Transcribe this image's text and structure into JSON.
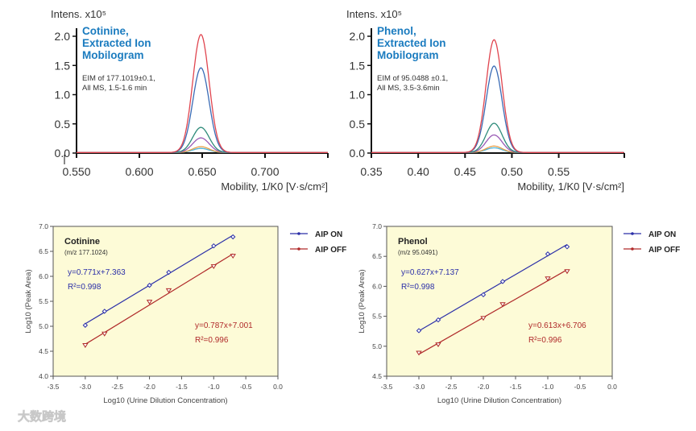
{
  "chart_data": [
    {
      "type": "line",
      "title": "Cotinine, Extracted Ion Mobilogram",
      "title_lines": [
        "Cotinine,",
        "Extracted Ion",
        "Mobilogram"
      ],
      "note_lines": [
        "EIM of 177.1019±0.1,",
        "All MS, 1.5-1.6 min"
      ],
      "ylabel": "Intens. x10⁵",
      "xlabel": "Mobility, 1/K0 [V·s/cm²]",
      "xlim": [
        0.55,
        0.75
      ],
      "ylim": [
        0,
        2.0
      ],
      "xticks": [
        "0.550",
        "0.600",
        "0.650",
        "0.700"
      ],
      "yticks": [
        "0.0",
        "0.5",
        "1.0",
        "1.5",
        "2.0"
      ],
      "peak_center": 0.649,
      "peak_sigma": 0.0065,
      "series": [
        {
          "color": "#e0454f",
          "peak": 2.02
        },
        {
          "color": "#3a6bb5",
          "peak": 1.45
        },
        {
          "color": "#2e8b7a",
          "peak": 0.43
        },
        {
          "color": "#9a5bb5",
          "peak": 0.25
        },
        {
          "color": "#e8a04a",
          "peak": 0.1
        },
        {
          "color": "#4fb3d9",
          "peak": 0.07
        }
      ]
    },
    {
      "type": "line",
      "title": "Phenol, Extracted Ion Mobilogram",
      "title_lines": [
        "Phenol,",
        "Extracted Ion",
        "Mobilogram"
      ],
      "note_lines": [
        "EIM of 95.0488 ±0.1,",
        "All MS, 3.5-3.6min"
      ],
      "ylabel": "Intens. x10⁵",
      "xlabel": "Mobility, 1/K0 [V·s/cm²]",
      "xlim": [
        0.35,
        0.62
      ],
      "ylim": [
        0,
        2.0
      ],
      "xticks": [
        "0.35",
        "0.40",
        "0.45",
        "0.50",
        "0.55"
      ],
      "yticks": [
        "0.0",
        "0.5",
        "1.0",
        "1.5",
        "2.0"
      ],
      "peak_center": 0.481,
      "peak_sigma": 0.0085,
      "series": [
        {
          "color": "#e0454f",
          "peak": 1.93
        },
        {
          "color": "#3a6bb5",
          "peak": 1.48
        },
        {
          "color": "#2e8b7a",
          "peak": 0.5
        },
        {
          "color": "#9a5bb5",
          "peak": 0.3
        },
        {
          "color": "#e8a04a",
          "peak": 0.11
        },
        {
          "color": "#4fb3d9",
          "peak": 0.08
        }
      ]
    },
    {
      "type": "scatter",
      "title": "Cotinine",
      "subtitle": "(m/z 177.1024)",
      "xlabel": "Log10 (Urine Dilution Concentration)",
      "ylabel": "Log10 (Peak Area)",
      "xlim": [
        -3.5,
        0.0
      ],
      "ylim": [
        4.0,
        7.0
      ],
      "xticks": [
        "-3.5",
        "-3.0",
        "-2.5",
        "-2.0",
        "-1.5",
        "-1.0",
        "-0.5",
        "0.0"
      ],
      "yticks": [
        "4.0",
        "4.5",
        "5.0",
        "5.5",
        "6.0",
        "6.5",
        "7.0"
      ],
      "x": [
        -3.0,
        -2.7,
        -2.0,
        -1.7,
        -1.0,
        -0.7
      ],
      "series": [
        {
          "name": "AIP ON",
          "color": "#2b2fa8",
          "marker": "diamond",
          "values": [
            5.02,
            5.3,
            5.82,
            6.08,
            6.61,
            6.79
          ],
          "slope": 0.771,
          "intercept": 7.363,
          "equation": "y=0.771x+7.363",
          "r2": "R²=0.998"
        },
        {
          "name": "AIP OFF",
          "color": "#b02a2a",
          "marker": "triangle-down",
          "values": [
            4.62,
            4.85,
            5.49,
            5.72,
            6.2,
            6.41
          ],
          "slope": 0.787,
          "intercept": 7.001,
          "equation": "y=0.787x+7.001",
          "r2": "R²=0.996"
        }
      ],
      "legend": "right"
    },
    {
      "type": "scatter",
      "title": "Phenol",
      "subtitle": "(m/z 95.0491)",
      "xlabel": "Log10 (Urine Dilution Concentration)",
      "ylabel": "Log10 (Peak Area)",
      "xlim": [
        -3.5,
        0.0
      ],
      "ylim": [
        4.5,
        7.0
      ],
      "xticks": [
        "-3.5",
        "-3.0",
        "-2.5",
        "-2.0",
        "-1.5",
        "-1.0",
        "-0.5",
        "0.0"
      ],
      "yticks": [
        "4.5",
        "5.0",
        "5.5",
        "6.0",
        "6.5",
        "7.0"
      ],
      "x": [
        -3.0,
        -2.7,
        -2.0,
        -1.7,
        -1.0,
        -0.7
      ],
      "series": [
        {
          "name": "AIP ON",
          "color": "#2b2fa8",
          "marker": "diamond",
          "values": [
            5.26,
            5.44,
            5.86,
            6.08,
            6.54,
            6.66
          ],
          "slope": 0.627,
          "intercept": 7.137,
          "equation": "y=0.627x+7.137",
          "r2": "R²=0.998"
        },
        {
          "name": "AIP OFF",
          "color": "#b02a2a",
          "marker": "triangle-down",
          "values": [
            4.89,
            5.03,
            5.47,
            5.7,
            6.13,
            6.25
          ],
          "slope": 0.613,
          "intercept": 6.706,
          "equation": "y=0.613x+6.706",
          "r2": "R²=0.996"
        }
      ],
      "legend": "right"
    }
  ],
  "watermark": "大数跨境"
}
